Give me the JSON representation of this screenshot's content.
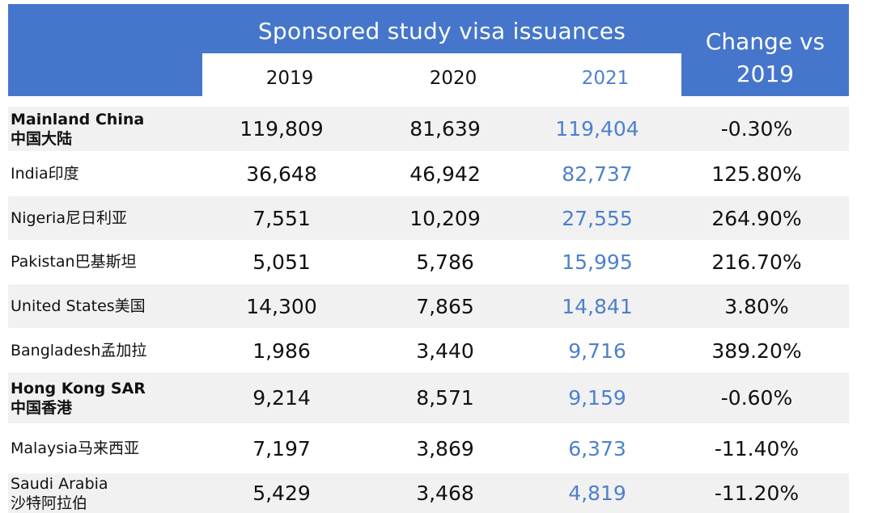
{
  "header": {
    "title": "Sponsored study visa issuances",
    "year_2019": "2019",
    "year_2020": "2020",
    "year_2021": "2021",
    "change_line1": "Change vs",
    "change_line2": "2019"
  },
  "rows": [
    {
      "name_en": "Mainland China",
      "name_cn": "中国大陆",
      "bold": true,
      "v2019": "119,809",
      "v2020": "81,639",
      "v2021": "119,404",
      "change": "-0.30%"
    },
    {
      "name_en": "India印度",
      "name_cn": "",
      "bold": false,
      "v2019": "36,648",
      "v2020": "46,942",
      "v2021": "82,737",
      "change": "125.80%"
    },
    {
      "name_en": "Nigeria尼日利亚",
      "name_cn": "",
      "bold": false,
      "v2019": "7,551",
      "v2020": "10,209",
      "v2021": "27,555",
      "change": "264.90%"
    },
    {
      "name_en": "Pakistan巴基斯坦",
      "name_cn": "",
      "bold": false,
      "v2019": "5,051",
      "v2020": "5,786",
      "v2021": "15,995",
      "change": "216.70%"
    },
    {
      "name_en": "United States美国",
      "name_cn": "",
      "bold": false,
      "v2019": "14,300",
      "v2020": "7,865",
      "v2021": "14,841",
      "change": "3.80%"
    },
    {
      "name_en": "Bangladesh孟加拉",
      "name_cn": "",
      "bold": false,
      "v2019": "1,986",
      "v2020": "3,440",
      "v2021": "9,716",
      "change": "389.20%"
    },
    {
      "name_en": "Hong Kong SAR",
      "name_cn": "中国香港",
      "bold": true,
      "v2019": "9,214",
      "v2020": "8,571",
      "v2021": "9,159",
      "change": "-0.60%"
    },
    {
      "name_en": "Malaysia马来西亚",
      "name_cn": "",
      "bold": false,
      "v2019": "7,197",
      "v2020": "3,869",
      "v2021": "6,373",
      "change": "-11.40%"
    },
    {
      "name_en": "Saudi Arabia",
      "name_cn": "沙特阿拉伯",
      "bold": false,
      "v2019": "5,429",
      "v2020": "3,468",
      "v2021": "4,819",
      "change": "-11.20%"
    }
  ],
  "colors": {
    "header_blue": "#4576cb",
    "year2021_blue": "#4e80cc",
    "row_shade": "#f1f1f1"
  }
}
